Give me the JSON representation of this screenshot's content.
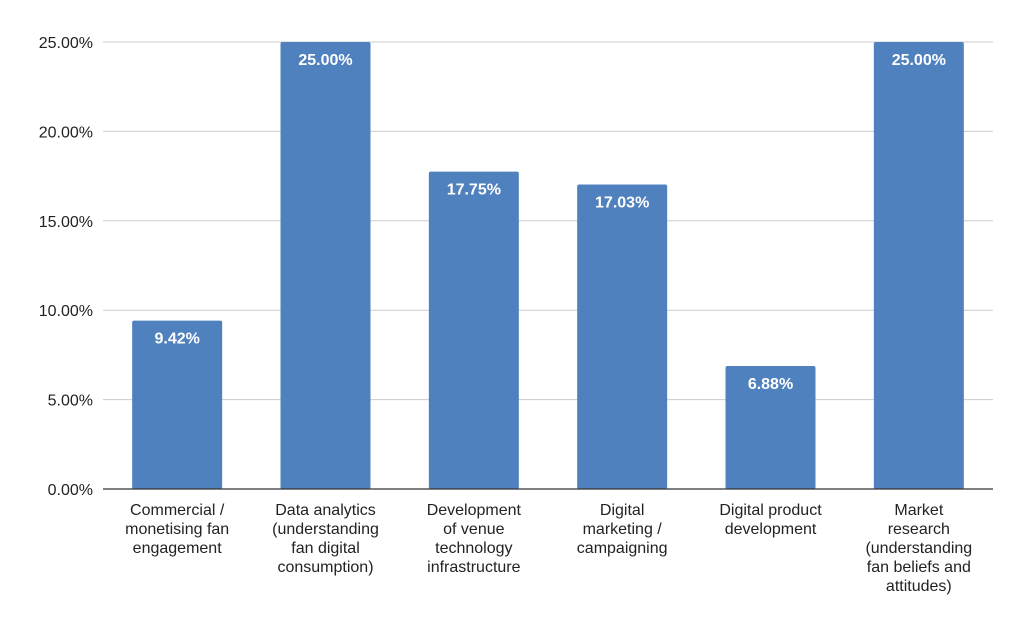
{
  "chart_data": {
    "type": "bar",
    "categories": [
      "Commercial / monetising fan engagement",
      "Data analytics (understanding fan digital consumption)",
      "Development of venue technology infrastructure",
      "Digital marketing / campaigning",
      "Digital product development",
      "Market research (understanding fan beliefs and attitudes)"
    ],
    "category_label_lines": [
      [
        "Commercial /",
        "monetising fan",
        "engagement"
      ],
      [
        "Data analytics",
        "(understanding",
        "fan digital",
        "consumption)"
      ],
      [
        "Development",
        "of venue",
        "technology",
        "infrastructure"
      ],
      [
        "Digital",
        "marketing /",
        "campaigning"
      ],
      [
        "Digital product",
        "development"
      ],
      [
        "Market",
        "research",
        "(understanding",
        "fan beliefs and",
        "attitudes)"
      ]
    ],
    "values": [
      9.42,
      25.0,
      17.75,
      17.03,
      6.88,
      25.0
    ],
    "value_labels": [
      "9.42%",
      "25.00%",
      "17.75%",
      "17.03%",
      "6.88%",
      "25.00%"
    ],
    "y_ticks": [
      0,
      5,
      10,
      15,
      20,
      25
    ],
    "y_tick_labels": [
      "0.00%",
      "5.00%",
      "10.00%",
      "15.00%",
      "20.00%",
      "25.00%"
    ],
    "ylim": [
      0,
      25
    ],
    "title": "",
    "xlabel": "",
    "ylabel": "",
    "grid": true,
    "legend": "none",
    "colors": {
      "bar": "#4e81bd",
      "grid": "#cccccc",
      "axis": "#333333",
      "label": "#ffffff"
    }
  }
}
